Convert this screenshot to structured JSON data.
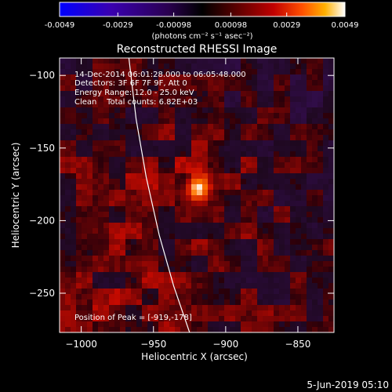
{
  "colorbar": {
    "ticks": [
      "-0.0049",
      "-0.0029",
      "-0.00098",
      "0.00098",
      "0.0029",
      "0.0049"
    ],
    "tick_values": [
      -0.0049,
      -0.0029,
      -0.00098,
      0.00098,
      0.0029,
      0.0049
    ],
    "range": [
      -0.0049,
      0.0049
    ],
    "unit_label": "(photons cm⁻² s⁻¹ asec⁻²)",
    "colors": [
      "#0000ff",
      "#3a00b0",
      "#2a0050",
      "#000000",
      "#5a0000",
      "#c00000",
      "#ff5000",
      "#ffb000",
      "#ffffff"
    ]
  },
  "chart_data": {
    "type": "heatmap",
    "title": "Reconstructed RHESSI Image",
    "xlabel": "Heliocentric X (arcsec)",
    "ylabel": "Heliocentric Y (arcsec)",
    "xlim": [
      -1015,
      -825
    ],
    "ylim": [
      -277,
      -88
    ],
    "xticks": [
      -1000,
      -950,
      -900,
      -850
    ],
    "yticks": [
      -100,
      -150,
      -200,
      -250
    ],
    "xtick_labels": [
      "−1000",
      "−950",
      "−900",
      "−850"
    ],
    "ytick_labels": [
      "−100",
      "−150",
      "−200",
      "−250"
    ],
    "peak": {
      "x": -919,
      "y": -178,
      "value": 0.0049
    },
    "limb_curve": [
      [
        -967,
        -88
      ],
      [
        -962,
        -130
      ],
      [
        -955,
        -170
      ],
      [
        -946,
        -210
      ],
      [
        -936,
        -245
      ],
      [
        -925,
        -277
      ]
    ],
    "annotations": {
      "time_range": "14-Dec-2014 06:01:28.000 to 06:05:48.000",
      "detectors": "Detectors: 3F 6F 7F 9F, Att 0",
      "energy": "Energy Range: 12.0 - 25.0 keV",
      "clean": "Clean    Total counts: 6.82E+03",
      "peak_label": "Position of Peak = [-919,-178]"
    },
    "grid": false
  },
  "footer": {
    "date": "5-Jun-2019 05:10"
  }
}
